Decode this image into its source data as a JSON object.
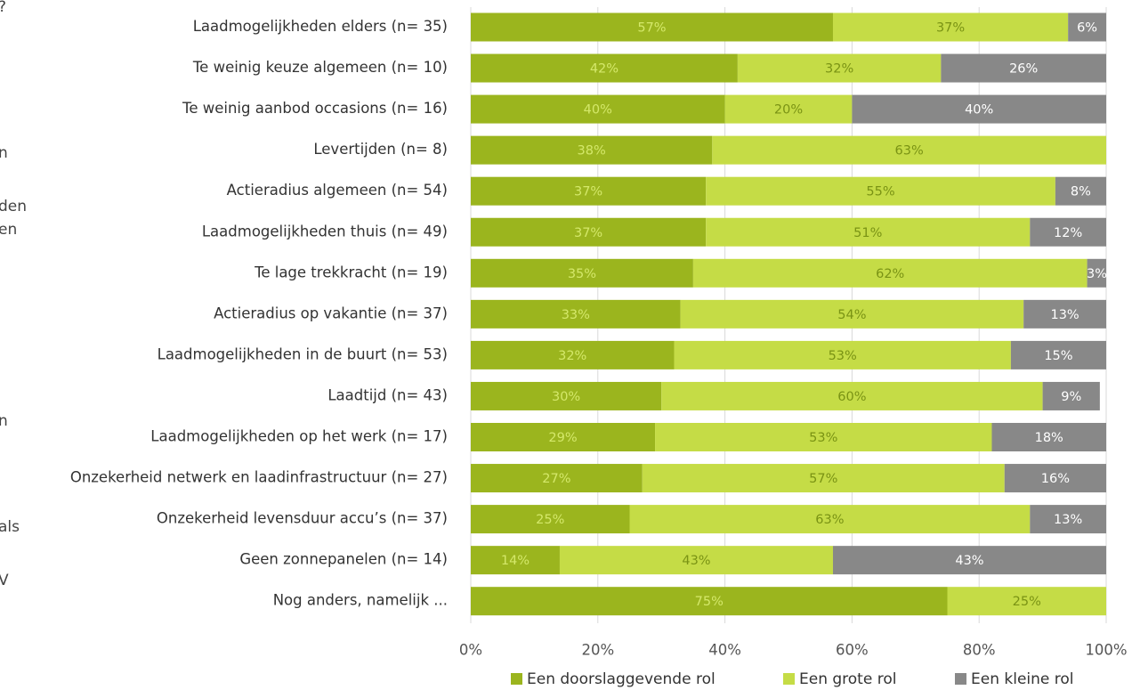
{
  "chart_data": {
    "type": "bar",
    "orientation": "horizontal",
    "stacked": true,
    "categories": [
      "Laadmogelijkheden elders (n= 35)",
      "Te weinig keuze algemeen (n= 10)",
      "Te weinig aanbod occasions (n= 16)",
      "Levertijden (n= 8)",
      "Actieradius algemeen (n= 54)",
      "Laadmogelijkheden thuis (n= 49)",
      "Te lage trekkracht (n= 19)",
      "Actieradius op vakantie (n= 37)",
      "Laadmogelijkheden in de buurt (n= 53)",
      "Laadtijd (n= 43)",
      "Laadmogelijkheden op het werk (n= 17)",
      "Onzekerheid netwerk en laadinfrastructuur (n= 27)",
      "Onzekerheid levensduur accu’s (n= 37)",
      "Geen zonnepanelen (n= 14)",
      "Nog anders, namelijk ..."
    ],
    "series": [
      {
        "name": "Een doorslaggevende rol",
        "color": "#9bb51e",
        "values": [
          57,
          42,
          40,
          38,
          37,
          37,
          35,
          33,
          32,
          30,
          29,
          27,
          25,
          14,
          75
        ],
        "labels": [
          "57%",
          "42%",
          "40%",
          "38%",
          "37%",
          "37%",
          "35%",
          "33%",
          "32%",
          "30%",
          "29%",
          "27%",
          "25%",
          "14%",
          "75%"
        ]
      },
      {
        "name": "Een grote rol",
        "color": "#c5dc46",
        "values": [
          37,
          32,
          20,
          63,
          55,
          51,
          62,
          54,
          53,
          60,
          53,
          57,
          63,
          43,
          25
        ],
        "labels": [
          "37%",
          "32%",
          "20%",
          "63%",
          "55%",
          "51%",
          "62%",
          "54%",
          "53%",
          "60%",
          "53%",
          "57%",
          "63%",
          "43%",
          "25%"
        ]
      },
      {
        "name": "Een kleine rol",
        "color": "#888888",
        "values": [
          6,
          26,
          40,
          0,
          8,
          12,
          3,
          13,
          15,
          9,
          18,
          16,
          13,
          43,
          0
        ],
        "labels": [
          "6%",
          "26%",
          "40%",
          "",
          "8%",
          "12%",
          "3%",
          "13%",
          "15%",
          "9%",
          "18%",
          "16%",
          "13%",
          "43%",
          ""
        ]
      }
    ],
    "xlim": [
      0,
      100
    ],
    "xticks": [
      "0%",
      "20%",
      "40%",
      "60%",
      "80%",
      "100%"
    ],
    "grid": true,
    "legend": "bottom",
    "title": "",
    "xlabel": "",
    "ylabel": ""
  },
  "left_edge_fragments": [
    "?",
    "n",
    "den",
    "en",
    "n",
    "als",
    "V"
  ]
}
